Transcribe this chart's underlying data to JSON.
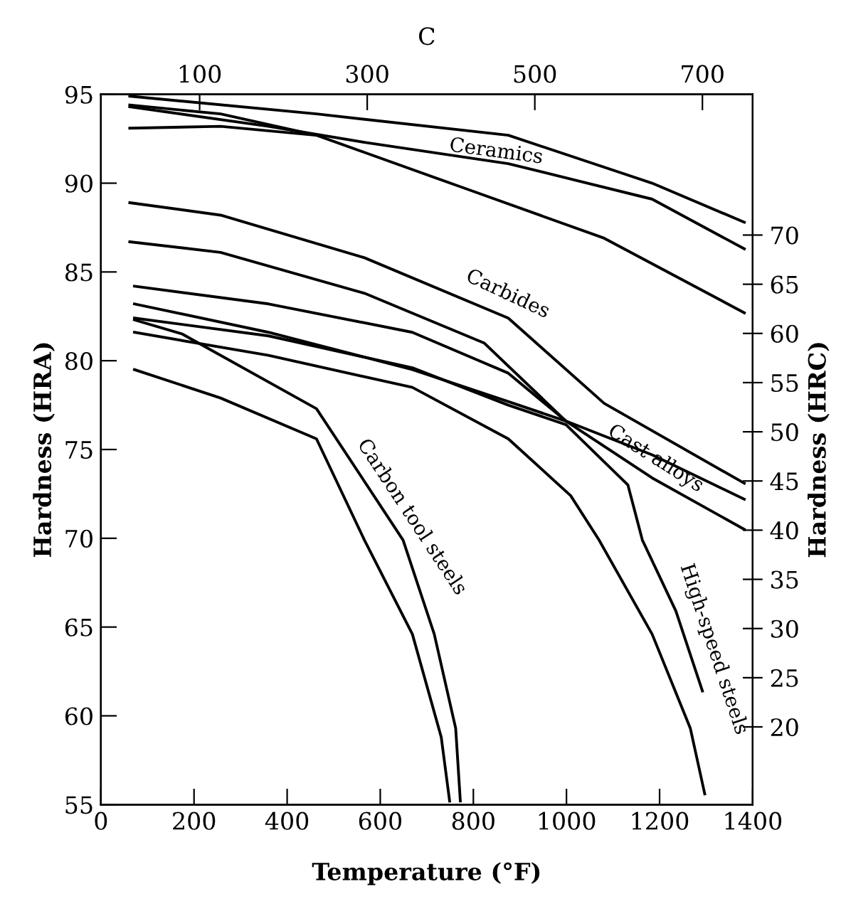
{
  "chart_data": {
    "type": "line",
    "xlabel": "Temperature (°F)",
    "ylabel": "Hardness (HRA)",
    "y2label": "Hardness (HRC)",
    "x2label": "C",
    "xlim": [
      0,
      1400
    ],
    "xticks": [
      0,
      200,
      400,
      600,
      800,
      1000,
      1200,
      1400
    ],
    "ylim": [
      55,
      95
    ],
    "yticks": [
      55,
      60,
      65,
      70,
      75,
      80,
      85,
      90,
      95
    ],
    "x2lim": [
      -17.8,
      760
    ],
    "x2ticks": [
      100,
      300,
      500,
      700
    ],
    "y2lim": [
      12.1,
      84.3
    ],
    "y2ticks": [
      20,
      25,
      30,
      35,
      40,
      45,
      50,
      55,
      60,
      65,
      70
    ],
    "grid": false,
    "legend": false,
    "marker": "none",
    "line_style": "solid",
    "series": [
      {
        "name": "Ceramics",
        "color": "#000000",
        "x": [
          62,
          463,
          875,
          1184,
          1382
        ],
        "values": [
          94.9,
          93.9,
          92.7,
          90.0,
          87.8
        ]
      },
      {
        "color": "#000000",
        "x": [
          62,
          360,
          566,
          875,
          1184,
          1382
        ],
        "values": [
          94.3,
          93.2,
          92.3,
          91.1,
          89.1,
          86.3
        ]
      },
      {
        "color": "#000000",
        "x": [
          62,
          257,
          463,
          772,
          1081,
          1382
        ],
        "values": [
          94.4,
          93.9,
          92.7,
          89.8,
          86.9,
          82.7
        ]
      },
      {
        "color": "#000000",
        "x": [
          62,
          257,
          463
        ],
        "values": [
          93.1,
          93.2,
          92.7
        ]
      },
      {
        "name": "Carbides",
        "color": "#000000",
        "x": [
          62,
          257,
          566,
          875,
          1081,
          1382
        ],
        "values": [
          88.9,
          88.2,
          85.8,
          82.4,
          77.6,
          73.1
        ]
      },
      {
        "name": "Cast alloys",
        "color": "#000000",
        "x": [
          62,
          257,
          566,
          823,
          999,
          1184,
          1382
        ],
        "values": [
          86.7,
          86.1,
          83.8,
          81.0,
          76.6,
          73.4,
          70.5
        ]
      },
      {
        "color": "#000000",
        "x": [
          72,
          360,
          669,
          875,
          999
        ],
        "values": [
          84.2,
          83.2,
          81.6,
          79.3,
          76.6
        ]
      },
      {
        "color": "#000000",
        "x": [
          72,
          360,
          669,
          875,
          999,
          1184,
          1382
        ],
        "values": [
          83.2,
          81.6,
          79.5,
          77.7,
          76.6,
          74.7,
          72.2
        ]
      },
      {
        "name": "High-speed steels",
        "color": "#000000",
        "x": [
          72,
          360,
          669,
          875,
          999,
          1132,
          1163,
          1235,
          1292
        ],
        "values": [
          82.4,
          81.4,
          79.6,
          77.5,
          76.4,
          73.0,
          69.9,
          65.9,
          61.4
        ]
      },
      {
        "color": "#000000",
        "x": [
          72,
          360,
          669,
          875,
          1009,
          1070,
          1184,
          1266,
          1297
        ],
        "values": [
          81.6,
          80.3,
          78.5,
          75.6,
          72.4,
          69.9,
          64.6,
          59.3,
          55.6
        ]
      },
      {
        "color": "#000000",
        "x": [
          72,
          257,
          463,
          566,
          669,
          731,
          749
        ],
        "values": [
          79.5,
          77.9,
          75.6,
          69.9,
          64.6,
          58.8,
          55.2
        ]
      },
      {
        "name": "Carbon tool steels",
        "color": "#000000",
        "x": [
          72,
          175,
          463,
          649,
          716,
          762,
          772
        ],
        "values": [
          82.3,
          81.5,
          77.3,
          69.9,
          64.6,
          59.3,
          55.2
        ]
      }
    ]
  }
}
